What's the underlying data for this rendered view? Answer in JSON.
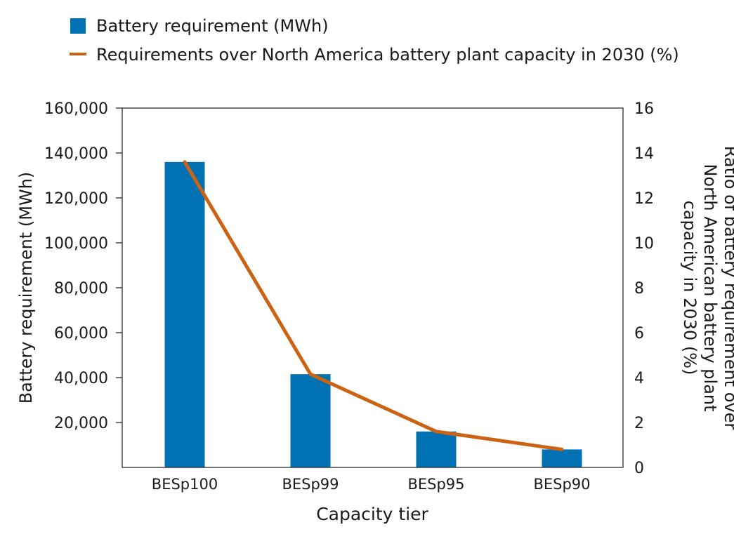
{
  "colors": {
    "bar": "#0071b2",
    "line": "#cc6314",
    "axis": "#1a1a1a"
  },
  "chart_data": {
    "type": "bar",
    "xlabel": "Capacity tier",
    "ylabel": "Battery requirement (MWh)",
    "y2label_lines": [
      "Ratio of  battery requirement over",
      "North American battery plant",
      "capacity in 2030 (%)"
    ],
    "categories": [
      "BESp100",
      "BESp99",
      "BESp95",
      "BESp90"
    ],
    "ylim": [
      0,
      160000
    ],
    "y2lim": [
      0,
      16
    ],
    "yticks": [
      {
        "value": 20000,
        "label": "20,000"
      },
      {
        "value": 40000,
        "label": "40,000"
      },
      {
        "value": 60000,
        "label": "60,000"
      },
      {
        "value": 80000,
        "label": "80,000"
      },
      {
        "value": 100000,
        "label": "100,000"
      },
      {
        "value": 120000,
        "label": "120,000"
      },
      {
        "value": 140000,
        "label": "140,000"
      },
      {
        "value": 160000,
        "label": "160,000"
      }
    ],
    "y2ticks": [
      {
        "value": 0,
        "label": "0"
      },
      {
        "value": 2,
        "label": "2"
      },
      {
        "value": 4,
        "label": "4"
      },
      {
        "value": 6,
        "label": "6"
      },
      {
        "value": 8,
        "label": "8"
      },
      {
        "value": 10,
        "label": "10"
      },
      {
        "value": 12,
        "label": "12"
      },
      {
        "value": 14,
        "label": "14"
      },
      {
        "value": 16,
        "label": "16"
      }
    ],
    "series": [
      {
        "name": "Battery requirement  (MWh)",
        "kind": "bar",
        "axis": "left",
        "values": [
          136000,
          41500,
          16000,
          8000
        ]
      },
      {
        "name": "Requirements over North America battery plant capacity in 2030 (%)",
        "kind": "line",
        "axis": "right",
        "values": [
          13.6,
          4.15,
          1.6,
          0.8
        ]
      }
    ],
    "legend": "top-left, above plot",
    "grid": false
  }
}
